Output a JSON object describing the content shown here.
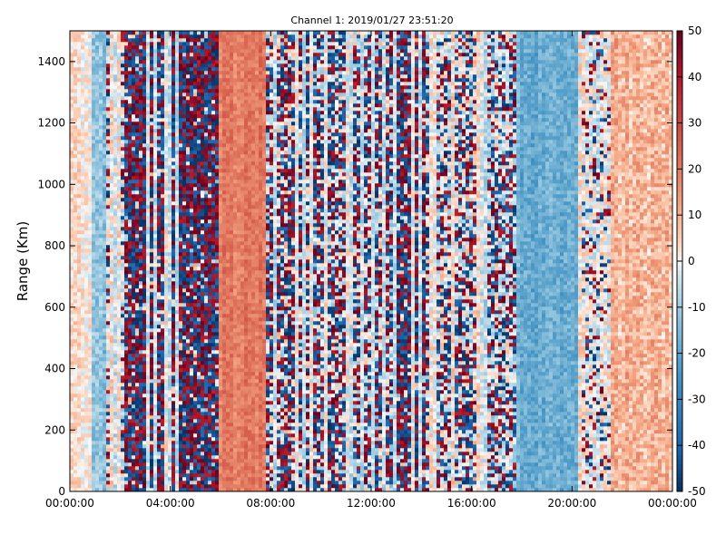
{
  "chart_data": {
    "type": "heatmap",
    "title": "Channel 1: 2019/01/27 23:51:20",
    "xlabel": "",
    "ylabel": "Range (Km)",
    "x_ticks": [
      "00:00:00",
      "04:00:00",
      "08:00:00",
      "12:00:00",
      "16:00:00",
      "20:00:00",
      "00:00:00"
    ],
    "x_tick_hours": [
      0,
      4,
      8,
      12,
      16,
      20,
      24
    ],
    "xlim_hours": [
      0,
      24
    ],
    "y_ticks": [
      0,
      200,
      400,
      600,
      800,
      1000,
      1200,
      1400
    ],
    "ylim": [
      0,
      1500
    ],
    "colorbar": {
      "ticks": [
        50,
        40,
        30,
        20,
        10,
        0,
        -10,
        -20,
        -30,
        -40,
        -50
      ],
      "range": [
        -50,
        50
      ],
      "colormap": "RdBu_r"
    },
    "grid": false,
    "regions": [
      {
        "start_h": 0.0,
        "end_h": 0.9,
        "kind": "smooth",
        "base": 3,
        "amp": 12
      },
      {
        "start_h": 0.9,
        "end_h": 1.4,
        "kind": "smooth",
        "base": -12,
        "amp": 14
      },
      {
        "start_h": 1.4,
        "end_h": 2.2,
        "kind": "noise",
        "density": 0.35
      },
      {
        "start_h": 2.2,
        "end_h": 5.9,
        "kind": "noise",
        "density": 0.9
      },
      {
        "start_h": 5.9,
        "end_h": 7.8,
        "kind": "smooth",
        "base": 20,
        "amp": 10
      },
      {
        "start_h": 7.8,
        "end_h": 12.9,
        "kind": "noise",
        "density": 0.6
      },
      {
        "start_h": 12.9,
        "end_h": 14.2,
        "kind": "noise",
        "density": 0.85
      },
      {
        "start_h": 14.2,
        "end_h": 17.8,
        "kind": "noise",
        "density": 0.45
      },
      {
        "start_h": 17.8,
        "end_h": 20.2,
        "kind": "smooth",
        "base": -18,
        "amp": 12
      },
      {
        "start_h": 20.2,
        "end_h": 21.6,
        "kind": "noise",
        "density": 0.2
      },
      {
        "start_h": 21.6,
        "end_h": 24.0,
        "kind": "smooth",
        "base": 10,
        "amp": 16
      }
    ]
  }
}
